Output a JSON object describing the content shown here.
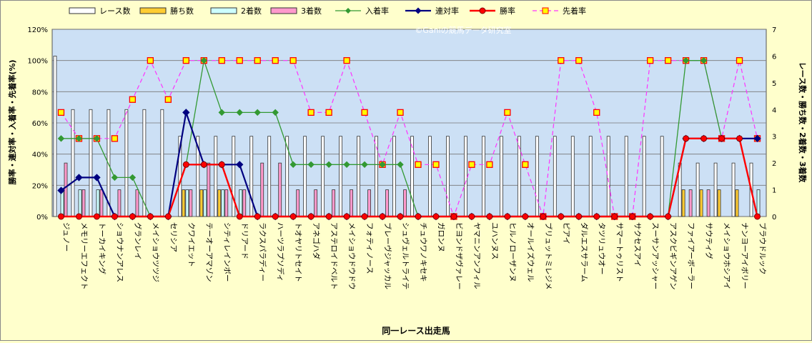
{
  "chart_data": {
    "type": "bar+line",
    "watermark": "©Ganiの競馬データ研究室",
    "xlabel": "同一レース出走馬",
    "ylabel_left": "勝率・連対率・入着率・先着率(%)",
    "ylabel_right": "レース数・勝ち数・2着数・3着数",
    "ylim_left": [
      0,
      120
    ],
    "ylim_right": [
      0,
      7
    ],
    "yticks_left": [
      "0%",
      "20%",
      "40%",
      "60%",
      "80%",
      "100%",
      "120%"
    ],
    "yticks_right": [
      "0",
      "1",
      "2",
      "3",
      "4",
      "5",
      "6",
      "7"
    ],
    "legend": [
      "レース数",
      "勝ち数",
      "2着数",
      "3着数",
      "入着率",
      "連対率",
      "勝率",
      "先着率"
    ],
    "colors": {
      "races": "#ffffff",
      "wins": "#ffcc33",
      "second": "#ccffff",
      "third": "#ff99cc",
      "place_rate": "#339933",
      "rentai_rate": "#000080",
      "win_rate": "#ff0000",
      "sentaku_rate": "#ff33ff",
      "plot_bg": "#cce0f5"
    },
    "categories": [
      "ジュノー",
      "メモリーエフェクト",
      "トーカイキング",
      "ショウナンアレス",
      "グランレイ",
      "メイショウツツジ",
      "セリシア",
      "クワイエット",
      "テーオーアマゾン",
      "シティレインボー",
      "ドリアード",
      "ラクスパラディー",
      "ハーツラプソディ",
      "トオヤリトセイト",
      "アネゴハダ",
      "アステロイドベルト",
      "メイショウドウドウ",
      "フォティノース",
      "ブレーヴジャッカル",
      "シュヴェルトライテ",
      "チュウワノキセキ",
      "ガロンヌ",
      "ビヨンドザヴァレー",
      "ヤマニンアンフィル",
      "ユハンヌス",
      "ヒルノローザンヌ",
      "オールイズウェル",
      "ブリュットミレジメ",
      "ピアイ",
      "ダルエスサラーム",
      "タツリュウオー",
      "サマートゥリスト",
      "サクセスアイ",
      "スーサンアッシャー",
      "アスクビギンアゲン",
      "ファイアーボーラー",
      "サウティグ",
      "メイショウホシアイ",
      "ナンヨーアイボリー",
      "ブラウドルック"
    ],
    "series": [
      {
        "name": "レース数",
        "axis": "right",
        "values": [
          6,
          4,
          4,
          4,
          4,
          4,
          4,
          3,
          3,
          3,
          3,
          3,
          3,
          3,
          3,
          3,
          3,
          3,
          3,
          3,
          3,
          3,
          3,
          3,
          3,
          3,
          3,
          3,
          3,
          3,
          3,
          3,
          3,
          3,
          3,
          2,
          2,
          2,
          2,
          2
        ]
      },
      {
        "name": "勝ち数",
        "axis": "right",
        "values": [
          0,
          0,
          0,
          0,
          0,
          0,
          0,
          1,
          1,
          1,
          0,
          0,
          0,
          0,
          0,
          0,
          0,
          0,
          0,
          0,
          0,
          0,
          0,
          0,
          0,
          0,
          0,
          0,
          0,
          0,
          0,
          0,
          0,
          0,
          0,
          1,
          1,
          1,
          1,
          0
        ]
      },
      {
        "name": "2着数",
        "axis": "right",
        "values": [
          1,
          1,
          1,
          0,
          0,
          0,
          0,
          1,
          1,
          1,
          1,
          0,
          0,
          0,
          0,
          0,
          0,
          0,
          0,
          0,
          0,
          0,
          0,
          0,
          0,
          0,
          0,
          0,
          0,
          0,
          0,
          0,
          0,
          0,
          0,
          0,
          0,
          0,
          0,
          1
        ]
      },
      {
        "name": "3着数",
        "axis": "right",
        "values": [
          2,
          1,
          1,
          1,
          1,
          0,
          0,
          1,
          2,
          1,
          1,
          2,
          2,
          1,
          1,
          1,
          1,
          1,
          1,
          1,
          0,
          0,
          0,
          0,
          0,
          0,
          0,
          0,
          0,
          0,
          0,
          0,
          0,
          0,
          0,
          1,
          1,
          0,
          0,
          0
        ]
      },
      {
        "name": "入着率",
        "axis": "left",
        "values": [
          50,
          50,
          50,
          25,
          25,
          0,
          0,
          33.3,
          100,
          66.7,
          66.7,
          66.7,
          66.7,
          33.3,
          33.3,
          33.3,
          33.3,
          33.3,
          33.3,
          33.3,
          0,
          0,
          0,
          0,
          0,
          0,
          0,
          0,
          0,
          0,
          0,
          0,
          0,
          0,
          0,
          100,
          100,
          50,
          50,
          50
        ]
      },
      {
        "name": "連対率",
        "axis": "left",
        "values": [
          16.7,
          25,
          25,
          0,
          0,
          0,
          0,
          66.7,
          33.3,
          33.3,
          33.3,
          0,
          0,
          0,
          0,
          0,
          0,
          0,
          0,
          0,
          0,
          0,
          0,
          0,
          0,
          0,
          0,
          0,
          0,
          0,
          0,
          0,
          0,
          0,
          0,
          50,
          50,
          50,
          50,
          50
        ]
      },
      {
        "name": "勝率",
        "axis": "left",
        "values": [
          0,
          0,
          0,
          0,
          0,
          0,
          0,
          33.3,
          33.3,
          33.3,
          0,
          0,
          0,
          0,
          0,
          0,
          0,
          0,
          0,
          0,
          0,
          0,
          0,
          0,
          0,
          0,
          0,
          0,
          0,
          0,
          0,
          0,
          0,
          0,
          0,
          50,
          50,
          50,
          50,
          0
        ]
      },
      {
        "name": "先着率",
        "axis": "left",
        "values": [
          66.7,
          50,
          50,
          50,
          75,
          100,
          75,
          100,
          100,
          100,
          100,
          100,
          100,
          100,
          66.7,
          66.7,
          100,
          66.7,
          33.3,
          66.7,
          33.3,
          33.3,
          0,
          33.3,
          33.3,
          66.7,
          33.3,
          0,
          100,
          100,
          66.7,
          0,
          0,
          100,
          100,
          100,
          100,
          50,
          100,
          50
        ]
      }
    ]
  }
}
